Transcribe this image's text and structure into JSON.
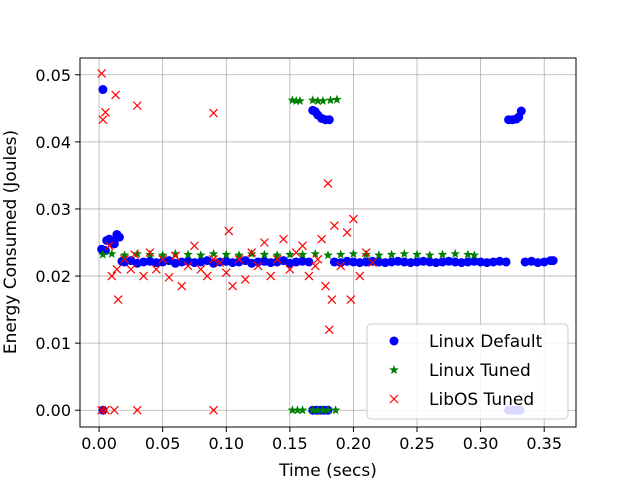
{
  "chart_data": {
    "type": "scatter",
    "title": "",
    "xlabel": "Time (secs)",
    "ylabel": "Energy Consumed (Joules)",
    "xlim": [
      -0.015,
      0.375
    ],
    "ylim": [
      -0.0025,
      0.0525
    ],
    "xticks": [
      0.0,
      0.05,
      0.1,
      0.15,
      0.2,
      0.25,
      0.3,
      0.35
    ],
    "xtick_labels": [
      "0.00",
      "0.05",
      "0.10",
      "0.15",
      "0.20",
      "0.25",
      "0.30",
      "0.35"
    ],
    "yticks": [
      0.0,
      0.01,
      0.02,
      0.03,
      0.04,
      0.05
    ],
    "ytick_labels": [
      "0.00",
      "0.01",
      "0.02",
      "0.03",
      "0.04",
      "0.05"
    ],
    "grid": true,
    "legend": "lower-right",
    "series": [
      {
        "name": "Linux Default",
        "marker": "circle",
        "color": "#0000ff",
        "points": [
          [
            0.002,
            0.024
          ],
          [
            0.003,
            0.0478
          ],
          [
            0.003,
            0.0
          ],
          [
            0.005,
            0.0238
          ],
          [
            0.006,
            0.0253
          ],
          [
            0.008,
            0.0255
          ],
          [
            0.01,
            0.0252
          ],
          [
            0.012,
            0.0248
          ],
          [
            0.014,
            0.0262
          ],
          [
            0.016,
            0.0258
          ],
          [
            0.018,
            0.0222
          ],
          [
            0.02,
            0.0221
          ],
          [
            0.025,
            0.0223
          ],
          [
            0.03,
            0.0219
          ],
          [
            0.035,
            0.0221
          ],
          [
            0.04,
            0.0222
          ],
          [
            0.045,
            0.022
          ],
          [
            0.05,
            0.0221
          ],
          [
            0.055,
            0.0223
          ],
          [
            0.06,
            0.0219
          ],
          [
            0.065,
            0.0221
          ],
          [
            0.07,
            0.0222
          ],
          [
            0.075,
            0.022
          ],
          [
            0.08,
            0.0221
          ],
          [
            0.085,
            0.0223
          ],
          [
            0.09,
            0.0219
          ],
          [
            0.095,
            0.0221
          ],
          [
            0.1,
            0.0222
          ],
          [
            0.105,
            0.022
          ],
          [
            0.11,
            0.0221
          ],
          [
            0.115,
            0.0223
          ],
          [
            0.12,
            0.0219
          ],
          [
            0.125,
            0.0221
          ],
          [
            0.13,
            0.0222
          ],
          [
            0.135,
            0.022
          ],
          [
            0.14,
            0.0221
          ],
          [
            0.145,
            0.0223
          ],
          [
            0.15,
            0.0219
          ],
          [
            0.155,
            0.0221
          ],
          [
            0.16,
            0.0222
          ],
          [
            0.165,
            0.0221
          ],
          [
            0.168,
            0.0447
          ],
          [
            0.17,
            0.0445
          ],
          [
            0.172,
            0.044
          ],
          [
            0.175,
            0.0435
          ],
          [
            0.178,
            0.0433
          ],
          [
            0.181,
            0.0433
          ],
          [
            0.168,
            0.0
          ],
          [
            0.171,
            0.0
          ],
          [
            0.174,
            0.0
          ],
          [
            0.177,
            0.0
          ],
          [
            0.18,
            0.0
          ],
          [
            0.185,
            0.0221
          ],
          [
            0.19,
            0.022
          ],
          [
            0.195,
            0.0222
          ],
          [
            0.2,
            0.0221
          ],
          [
            0.205,
            0.022
          ],
          [
            0.21,
            0.0221
          ],
          [
            0.215,
            0.0222
          ],
          [
            0.22,
            0.0221
          ],
          [
            0.225,
            0.022
          ],
          [
            0.23,
            0.0221
          ],
          [
            0.235,
            0.0222
          ],
          [
            0.24,
            0.0221
          ],
          [
            0.245,
            0.022
          ],
          [
            0.25,
            0.0221
          ],
          [
            0.255,
            0.0222
          ],
          [
            0.26,
            0.0221
          ],
          [
            0.265,
            0.022
          ],
          [
            0.27,
            0.0221
          ],
          [
            0.275,
            0.0222
          ],
          [
            0.28,
            0.0221
          ],
          [
            0.285,
            0.022
          ],
          [
            0.29,
            0.0221
          ],
          [
            0.295,
            0.0222
          ],
          [
            0.3,
            0.0221
          ],
          [
            0.305,
            0.022
          ],
          [
            0.31,
            0.0221
          ],
          [
            0.315,
            0.0222
          ],
          [
            0.32,
            0.0221
          ],
          [
            0.322,
            0.0433
          ],
          [
            0.325,
            0.0433
          ],
          [
            0.328,
            0.0434
          ],
          [
            0.33,
            0.0437
          ],
          [
            0.332,
            0.0446
          ],
          [
            0.322,
            0.0
          ],
          [
            0.325,
            0.0
          ],
          [
            0.328,
            0.0
          ],
          [
            0.331,
            0.0
          ],
          [
            0.335,
            0.0221
          ],
          [
            0.34,
            0.0222
          ],
          [
            0.345,
            0.022
          ],
          [
            0.35,
            0.0221
          ],
          [
            0.355,
            0.0223
          ],
          [
            0.357,
            0.0223
          ]
        ]
      },
      {
        "name": "Linux Tuned",
        "marker": "star",
        "color": "#008000",
        "points": [
          [
            0.003,
            0.0232
          ],
          [
            0.01,
            0.0233
          ],
          [
            0.02,
            0.0231
          ],
          [
            0.03,
            0.0233
          ],
          [
            0.04,
            0.0232
          ],
          [
            0.05,
            0.0231
          ],
          [
            0.06,
            0.0233
          ],
          [
            0.07,
            0.0232
          ],
          [
            0.08,
            0.0231
          ],
          [
            0.09,
            0.0233
          ],
          [
            0.1,
            0.0232
          ],
          [
            0.11,
            0.0231
          ],
          [
            0.12,
            0.0233
          ],
          [
            0.13,
            0.0232
          ],
          [
            0.14,
            0.0231
          ],
          [
            0.15,
            0.0232
          ],
          [
            0.152,
            0.0462
          ],
          [
            0.155,
            0.0461
          ],
          [
            0.158,
            0.0461
          ],
          [
            0.168,
            0.0462
          ],
          [
            0.172,
            0.0461
          ],
          [
            0.176,
            0.0461
          ],
          [
            0.182,
            0.0462
          ],
          [
            0.187,
            0.0463
          ],
          [
            0.152,
            0.0
          ],
          [
            0.156,
            0.0
          ],
          [
            0.16,
            0.0
          ],
          [
            0.168,
            0.0
          ],
          [
            0.172,
            0.0
          ],
          [
            0.176,
            0.0
          ],
          [
            0.18,
            0.0
          ],
          [
            0.186,
            0.0
          ],
          [
            0.16,
            0.0232
          ],
          [
            0.17,
            0.0233
          ],
          [
            0.18,
            0.0231
          ],
          [
            0.19,
            0.0232
          ],
          [
            0.2,
            0.0233
          ],
          [
            0.21,
            0.0232
          ],
          [
            0.22,
            0.0231
          ],
          [
            0.23,
            0.0232
          ],
          [
            0.24,
            0.0233
          ],
          [
            0.25,
            0.0232
          ],
          [
            0.26,
            0.0231
          ],
          [
            0.27,
            0.0232
          ],
          [
            0.28,
            0.0233
          ],
          [
            0.29,
            0.0232
          ],
          [
            0.295,
            0.0231
          ]
        ]
      },
      {
        "name": "LibOS Tuned",
        "marker": "x",
        "color": "#ff0000",
        "points": [
          [
            0.002,
            0.0502
          ],
          [
            0.003,
            0.0433
          ],
          [
            0.005,
            0.0444
          ],
          [
            0.002,
            0.0
          ],
          [
            0.005,
            0.0
          ],
          [
            0.012,
            0.0
          ],
          [
            0.03,
            0.0
          ],
          [
            0.09,
            0.0
          ],
          [
            0.013,
            0.047
          ],
          [
            0.03,
            0.0454
          ],
          [
            0.09,
            0.0443
          ],
          [
            0.015,
            0.0165
          ],
          [
            0.008,
            0.0245
          ],
          [
            0.01,
            0.02
          ],
          [
            0.014,
            0.021
          ],
          [
            0.02,
            0.0225
          ],
          [
            0.025,
            0.021
          ],
          [
            0.028,
            0.0232
          ],
          [
            0.035,
            0.02
          ],
          [
            0.04,
            0.0235
          ],
          [
            0.045,
            0.021
          ],
          [
            0.05,
            0.0225
          ],
          [
            0.055,
            0.0198
          ],
          [
            0.06,
            0.023
          ],
          [
            0.065,
            0.0185
          ],
          [
            0.07,
            0.0215
          ],
          [
            0.075,
            0.0245
          ],
          [
            0.08,
            0.021
          ],
          [
            0.085,
            0.02
          ],
          [
            0.09,
            0.0225
          ],
          [
            0.095,
            0.022
          ],
          [
            0.1,
            0.0205
          ],
          [
            0.102,
            0.0267
          ],
          [
            0.105,
            0.0185
          ],
          [
            0.11,
            0.0225
          ],
          [
            0.115,
            0.0195
          ],
          [
            0.12,
            0.0235
          ],
          [
            0.125,
            0.0215
          ],
          [
            0.13,
            0.025
          ],
          [
            0.135,
            0.02
          ],
          [
            0.14,
            0.0225
          ],
          [
            0.145,
            0.0255
          ],
          [
            0.15,
            0.021
          ],
          [
            0.155,
            0.0235
          ],
          [
            0.16,
            0.0245
          ],
          [
            0.165,
            0.02
          ],
          [
            0.17,
            0.0215
          ],
          [
            0.172,
            0.0225
          ],
          [
            0.175,
            0.0255
          ],
          [
            0.178,
            0.0185
          ],
          [
            0.18,
            0.0338
          ],
          [
            0.181,
            0.012
          ],
          [
            0.183,
            0.0165
          ],
          [
            0.185,
            0.0275
          ],
          [
            0.19,
            0.0215
          ],
          [
            0.195,
            0.0265
          ],
          [
            0.198,
            0.0165
          ],
          [
            0.2,
            0.0285
          ],
          [
            0.205,
            0.02
          ],
          [
            0.21,
            0.0235
          ],
          [
            0.215,
            0.022
          ]
        ]
      }
    ]
  }
}
